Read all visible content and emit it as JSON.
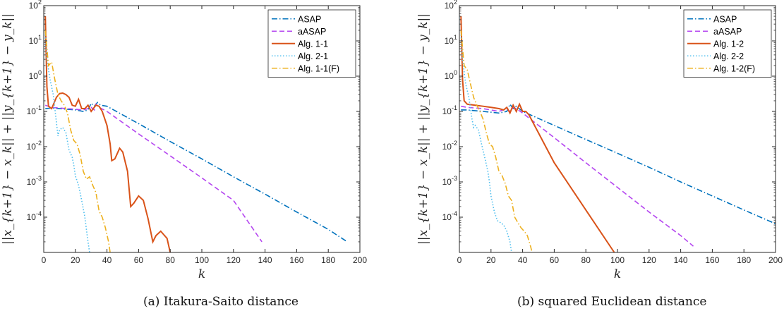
{
  "chart_data": [
    {
      "type": "line",
      "caption": "(a) Itakura-Saito distance",
      "xlabel": "k",
      "ylabel": "||x_{k+1} − x_k|| + ||y_{k+1} − y_k||",
      "yscale": "log",
      "xlim": [
        0,
        200
      ],
      "ylim": [
        1e-05,
        100
      ],
      "xticks": [
        0,
        20,
        40,
        60,
        80,
        100,
        120,
        140,
        160,
        180,
        200
      ],
      "yticks": [
        {
          "value": 0.0001,
          "mant": "10",
          "exp": "-4"
        },
        {
          "value": 0.001,
          "mant": "10",
          "exp": "-3"
        },
        {
          "value": 0.01,
          "mant": "10",
          "exp": "-2"
        },
        {
          "value": 0.1,
          "mant": "10",
          "exp": "-1"
        },
        {
          "value": 1,
          "mant": "10",
          "exp": "0"
        },
        {
          "value": 10,
          "mant": "10",
          "exp": "1"
        },
        {
          "value": 100,
          "mant": "10",
          "exp": "2"
        }
      ],
      "grid": false,
      "legend_position": "top-right",
      "series": [
        {
          "name": "ASAP",
          "color": "#0072BD",
          "dash": "dashdot",
          "points": [
            [
              1,
              0.12
            ],
            [
              5,
              0.125
            ],
            [
              10,
              0.12
            ],
            [
              20,
              0.11
            ],
            [
              25,
              0.1
            ],
            [
              28,
              0.11
            ],
            [
              30,
              0.17
            ],
            [
              32,
              0.14
            ],
            [
              34,
              0.18
            ],
            [
              36,
              0.15
            ],
            [
              40,
              0.14
            ],
            [
              60,
              0.045
            ],
            [
              80,
              0.014
            ],
            [
              100,
              0.0045
            ],
            [
              120,
              0.0014
            ],
            [
              140,
              0.00045
            ],
            [
              160,
              0.00014
            ],
            [
              180,
              4.5e-05
            ],
            [
              192,
              2e-05
            ]
          ]
        },
        {
          "name": "aASAP",
          "color": "#B547F0",
          "dash": "dashed",
          "points": [
            [
              1,
              0.15
            ],
            [
              5,
              0.13
            ],
            [
              15,
              0.12
            ],
            [
              25,
              0.11
            ],
            [
              28,
              0.12
            ],
            [
              30,
              0.13
            ],
            [
              32,
              0.11
            ],
            [
              33,
              0.16
            ],
            [
              35,
              0.13
            ],
            [
              40,
              0.1
            ],
            [
              60,
              0.023
            ],
            [
              80,
              0.0055
            ],
            [
              100,
              0.0013
            ],
            [
              120,
              0.0003
            ],
            [
              138,
              2e-05
            ]
          ]
        },
        {
          "name": "Alg. 1-1",
          "color": "#D95319",
          "dash": "solid",
          "points": [
            [
              1,
              50
            ],
            [
              2,
              0.5
            ],
            [
              3,
              0.14
            ],
            [
              5,
              0.12
            ],
            [
              8,
              0.25
            ],
            [
              10,
              0.32
            ],
            [
              12,
              0.33
            ],
            [
              14,
              0.3
            ],
            [
              16,
              0.25
            ],
            [
              18,
              0.15
            ],
            [
              20,
              0.14
            ],
            [
              22,
              0.22
            ],
            [
              24,
              0.12
            ],
            [
              26,
              0.12
            ],
            [
              28,
              0.15
            ],
            [
              30,
              0.1
            ],
            [
              33,
              0.15
            ],
            [
              35,
              0.14
            ],
            [
              37,
              0.1
            ],
            [
              40,
              0.04
            ],
            [
              42,
              0.012
            ],
            [
              43,
              0.004
            ],
            [
              45,
              0.0045
            ],
            [
              48,
              0.009
            ],
            [
              50,
              0.007
            ],
            [
              53,
              0.002
            ],
            [
              55,
              0.0002
            ],
            [
              57,
              0.00025
            ],
            [
              60,
              0.0004
            ],
            [
              63,
              0.0003
            ],
            [
              66,
              9e-05
            ],
            [
              69,
              2e-05
            ],
            [
              71,
              3e-05
            ],
            [
              74,
              4e-05
            ],
            [
              78,
              2.5e-05
            ],
            [
              80,
              1e-05
            ]
          ]
        },
        {
          "name": "Alg. 2-1",
          "color": "#4DBEEE",
          "dash": "dotted",
          "points": [
            [
              1,
              15
            ],
            [
              2,
              3
            ],
            [
              4,
              0.8
            ],
            [
              6,
              0.3
            ],
            [
              8,
              0.05
            ],
            [
              9,
              0.02
            ],
            [
              10,
              0.03
            ],
            [
              12,
              0.035
            ],
            [
              14,
              0.025
            ],
            [
              16,
              0.008
            ],
            [
              18,
              0.005
            ],
            [
              19,
              0.003
            ],
            [
              20,
              0.0015
            ],
            [
              22,
              0.0008
            ],
            [
              24,
              0.0003
            ],
            [
              26,
              0.0001
            ],
            [
              28,
              2e-05
            ],
            [
              29,
              1e-05
            ]
          ]
        },
        {
          "name": "Alg. 1-1(F)",
          "color": "#EDB120",
          "dash": "dashdot",
          "points": [
            [
              1,
              20
            ],
            [
              3,
              2
            ],
            [
              5,
              2.5
            ],
            [
              7,
              0.8
            ],
            [
              9,
              0.3
            ],
            [
              11,
              0.2
            ],
            [
              13,
              0.15
            ],
            [
              15,
              0.09
            ],
            [
              17,
              0.03
            ],
            [
              19,
              0.015
            ],
            [
              21,
              0.012
            ],
            [
              23,
              0.006
            ],
            [
              25,
              0.002
            ],
            [
              27,
              0.0012
            ],
            [
              29,
              0.0014
            ],
            [
              31,
              0.0008
            ],
            [
              33,
              0.0005
            ],
            [
              35,
              0.00015
            ],
            [
              37,
              0.0001
            ],
            [
              39,
              5e-05
            ],
            [
              41,
              2e-05
            ],
            [
              42,
              1e-05
            ]
          ]
        }
      ]
    },
    {
      "type": "line",
      "caption": "(b) squared Euclidean distance",
      "xlabel": "k",
      "ylabel": "||x_{k+1} − x_k|| + ||y_{k+1} − y_k||",
      "yscale": "log",
      "xlim": [
        0,
        200
      ],
      "ylim": [
        1e-05,
        100
      ],
      "xticks": [
        0,
        20,
        40,
        60,
        80,
        100,
        120,
        140,
        160,
        180,
        200
      ],
      "yticks": [
        {
          "value": 0.0001,
          "mant": "10",
          "exp": "-4"
        },
        {
          "value": 0.001,
          "mant": "10",
          "exp": "-3"
        },
        {
          "value": 0.01,
          "mant": "10",
          "exp": "-2"
        },
        {
          "value": 0.1,
          "mant": "10",
          "exp": "-1"
        },
        {
          "value": 1,
          "mant": "10",
          "exp": "0"
        },
        {
          "value": 10,
          "mant": "10",
          "exp": "1"
        },
        {
          "value": 100,
          "mant": "10",
          "exp": "2"
        }
      ],
      "grid": false,
      "legend_position": "top-right",
      "series": [
        {
          "name": "ASAP",
          "color": "#0072BD",
          "dash": "dashdot",
          "points": [
            [
              1,
              0.11
            ],
            [
              5,
              0.11
            ],
            [
              15,
              0.1
            ],
            [
              25,
              0.09
            ],
            [
              30,
              0.1
            ],
            [
              32,
              0.16
            ],
            [
              34,
              0.12
            ],
            [
              36,
              0.14
            ],
            [
              40,
              0.1
            ],
            [
              60,
              0.04
            ],
            [
              80,
              0.016
            ],
            [
              100,
              0.0065
            ],
            [
              120,
              0.0026
            ],
            [
              140,
              0.001
            ],
            [
              160,
              0.0004
            ],
            [
              180,
              0.00016
            ],
            [
              200,
              6.5e-05
            ]
          ]
        },
        {
          "name": "aASAP",
          "color": "#B547F0",
          "dash": "dashed",
          "points": [
            [
              1,
              0.14
            ],
            [
              5,
              0.13
            ],
            [
              15,
              0.12
            ],
            [
              25,
              0.1
            ],
            [
              30,
              0.12
            ],
            [
              32,
              0.1
            ],
            [
              34,
              0.13
            ],
            [
              36,
              0.12
            ],
            [
              40,
              0.09
            ],
            [
              60,
              0.018
            ],
            [
              80,
              0.0035
            ],
            [
              100,
              0.0007
            ],
            [
              120,
              0.00014
            ],
            [
              140,
              3e-05
            ],
            [
              148,
              1.5e-05
            ]
          ]
        },
        {
          "name": "Alg. 1-2",
          "color": "#D95319",
          "dash": "solid",
          "points": [
            [
              1,
              50
            ],
            [
              2,
              0.8
            ],
            [
              3,
              0.2
            ],
            [
              5,
              0.16
            ],
            [
              10,
              0.15
            ],
            [
              15,
              0.14
            ],
            [
              20,
              0.13
            ],
            [
              25,
              0.12
            ],
            [
              28,
              0.11
            ],
            [
              30,
              0.13
            ],
            [
              32,
              0.09
            ],
            [
              34,
              0.15
            ],
            [
              36,
              0.1
            ],
            [
              38,
              0.16
            ],
            [
              40,
              0.1
            ],
            [
              42,
              0.1
            ],
            [
              44,
              0.08
            ],
            [
              60,
              0.0035
            ],
            [
              80,
              0.00016
            ],
            [
              98,
              1e-05
            ]
          ]
        },
        {
          "name": "Alg. 2-2",
          "color": "#4DBEEE",
          "dash": "dotted",
          "points": [
            [
              1,
              15
            ],
            [
              2,
              3
            ],
            [
              4,
              0.6
            ],
            [
              6,
              0.25
            ],
            [
              8,
              0.06
            ],
            [
              9,
              0.035
            ],
            [
              10,
              0.04
            ],
            [
              12,
              0.03
            ],
            [
              14,
              0.012
            ],
            [
              16,
              0.005
            ],
            [
              18,
              0.002
            ],
            [
              19,
              0.001
            ],
            [
              20,
              0.0004
            ],
            [
              22,
              0.00015
            ],
            [
              24,
              8e-05
            ],
            [
              26,
              7e-05
            ],
            [
              28,
              6e-05
            ],
            [
              30,
              4e-05
            ],
            [
              32,
              2e-05
            ],
            [
              33,
              1e-05
            ]
          ]
        },
        {
          "name": "Alg. 1-2(F)",
          "color": "#EDB120",
          "dash": "dashdot",
          "points": [
            [
              1,
              20
            ],
            [
              3,
              2
            ],
            [
              5,
              1.5
            ],
            [
              7,
              0.6
            ],
            [
              9,
              0.25
            ],
            [
              11,
              0.15
            ],
            [
              13,
              0.1
            ],
            [
              15,
              0.06
            ],
            [
              17,
              0.025
            ],
            [
              19,
              0.012
            ],
            [
              21,
              0.01
            ],
            [
              23,
              0.005
            ],
            [
              25,
              0.002
            ],
            [
              27,
              0.0015
            ],
            [
              29,
              0.0009
            ],
            [
              31,
              0.0004
            ],
            [
              33,
              0.0003
            ],
            [
              35,
              0.0001
            ],
            [
              37,
              7e-05
            ],
            [
              39,
              5e-05
            ],
            [
              41,
              4e-05
            ],
            [
              43,
              3e-05
            ],
            [
              45,
              1.5e-05
            ],
            [
              46,
              1e-05
            ]
          ]
        }
      ]
    }
  ]
}
